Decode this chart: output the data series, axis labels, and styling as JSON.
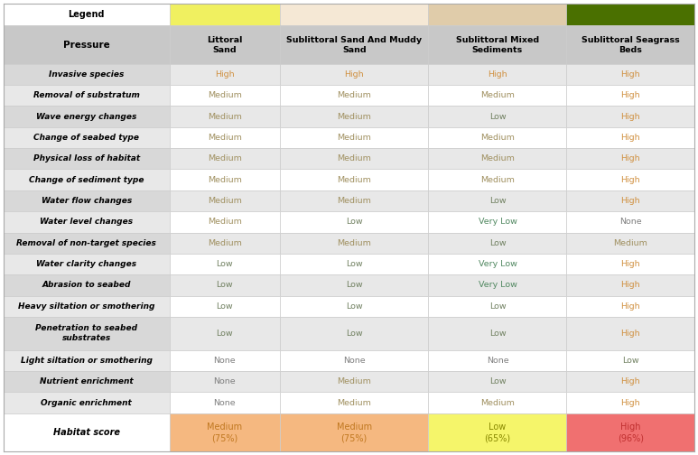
{
  "legend_header": "Legend",
  "pressure_header": "Pressure",
  "col_headers": [
    "Littoral\nSand",
    "Sublittoral Sand And Muddy\nSand",
    "Sublittoral Mixed\nSediments",
    "Sublittoral Seagrass\nBeds"
  ],
  "legend_colors": [
    "#f0f060",
    "#f5e8d5",
    "#e0ccaa",
    "#4a7000"
  ],
  "rows": [
    {
      "label": "Invasive species",
      "values": [
        "High",
        "High",
        "High",
        "High"
      ]
    },
    {
      "label": "Removal of substratum",
      "values": [
        "Medium",
        "Medium",
        "Medium",
        "High"
      ]
    },
    {
      "label": "Wave energy changes",
      "values": [
        "Medium",
        "Medium",
        "Low",
        "High"
      ]
    },
    {
      "label": "Change of seabed type",
      "values": [
        "Medium",
        "Medium",
        "Medium",
        "High"
      ]
    },
    {
      "label": "Physical loss of habitat",
      "values": [
        "Medium",
        "Medium",
        "Medium",
        "High"
      ]
    },
    {
      "label": "Change of sediment type",
      "values": [
        "Medium",
        "Medium",
        "Medium",
        "High"
      ]
    },
    {
      "label": "Water flow changes",
      "values": [
        "Medium",
        "Medium",
        "Low",
        "High"
      ]
    },
    {
      "label": "Water level changes",
      "values": [
        "Medium",
        "Low",
        "Very Low",
        "None"
      ]
    },
    {
      "label": "Removal of non-target species",
      "values": [
        "Medium",
        "Medium",
        "Low",
        "Medium"
      ]
    },
    {
      "label": "Water clarity changes",
      "values": [
        "Low",
        "Low",
        "Very Low",
        "High"
      ]
    },
    {
      "label": "Abrasion to seabed",
      "values": [
        "Low",
        "Low",
        "Very Low",
        "High"
      ]
    },
    {
      "label": "Heavy siltation or smothering",
      "values": [
        "Low",
        "Low",
        "Low",
        "High"
      ]
    },
    {
      "label": "Penetration to seabed\nsubstrates",
      "values": [
        "Low",
        "Low",
        "Low",
        "High"
      ]
    },
    {
      "label": "Light siltation or smothering",
      "values": [
        "None",
        "None",
        "None",
        "Low"
      ]
    },
    {
      "label": "Nutrient enrichment",
      "values": [
        "None",
        "Medium",
        "Low",
        "High"
      ]
    },
    {
      "label": "Organic enrichment",
      "values": [
        "None",
        "Medium",
        "Medium",
        "High"
      ]
    }
  ],
  "habitat_score": {
    "label": "Habitat score",
    "values": [
      "Medium\n(75%)",
      "Medium\n(75%)",
      "Low\n(65%)",
      "High\n(96%)"
    ],
    "bg_colors": [
      "#f5b880",
      "#f5b880",
      "#f5f56a",
      "#f07070"
    ],
    "text_colors": [
      "#c07820",
      "#c07820",
      "#888800",
      "#c03030"
    ]
  },
  "value_colors": {
    "High": "#d09040",
    "Medium": "#a09060",
    "Low": "#708060",
    "Very Low": "#508860",
    "None": "#808080"
  },
  "header_bg": "#c8c8c8",
  "row_bg_odd": "#e8e8e8",
  "row_bg_even": "#ffffff",
  "label_col_bg_odd": "#d8d8d8",
  "label_col_bg_even": "#e8e8e8",
  "figsize": [
    7.73,
    5.04
  ],
  "dpi": 100
}
